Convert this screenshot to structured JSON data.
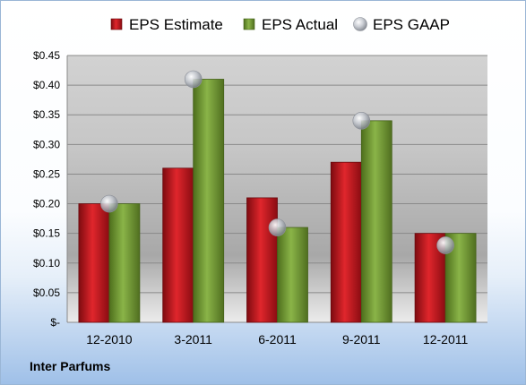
{
  "company": "Inter Parfums",
  "colors": {
    "estimate": "#c0141b",
    "actual": "#6e9a2e",
    "gaap": "#b8bcc4"
  },
  "chart_data": {
    "type": "bar",
    "title": "",
    "xlabel": "",
    "ylabel": "",
    "categories": [
      "12-2010",
      "3-2011",
      "6-2011",
      "9-2011",
      "12-2011"
    ],
    "series": [
      {
        "name": "EPS Estimate",
        "kind": "bar",
        "values": [
          0.2,
          0.26,
          0.21,
          0.27,
          0.15
        ]
      },
      {
        "name": "EPS Actual",
        "kind": "bar",
        "values": [
          0.2,
          0.41,
          0.16,
          0.34,
          0.15
        ]
      },
      {
        "name": "EPS GAAP",
        "kind": "point",
        "values": [
          0.2,
          0.41,
          0.16,
          0.34,
          0.13
        ]
      }
    ],
    "ylim": [
      0,
      0.45
    ],
    "yticks": [
      0,
      0.05,
      0.1,
      0.15,
      0.2,
      0.25,
      0.3,
      0.35,
      0.4,
      0.45
    ],
    "ytick_labels": [
      "$-",
      "$0.05",
      "$0.10",
      "$0.15",
      "$0.20",
      "$0.25",
      "$0.30",
      "$0.35",
      "$0.40",
      "$0.45"
    ],
    "legend": "top",
    "grid": true
  }
}
